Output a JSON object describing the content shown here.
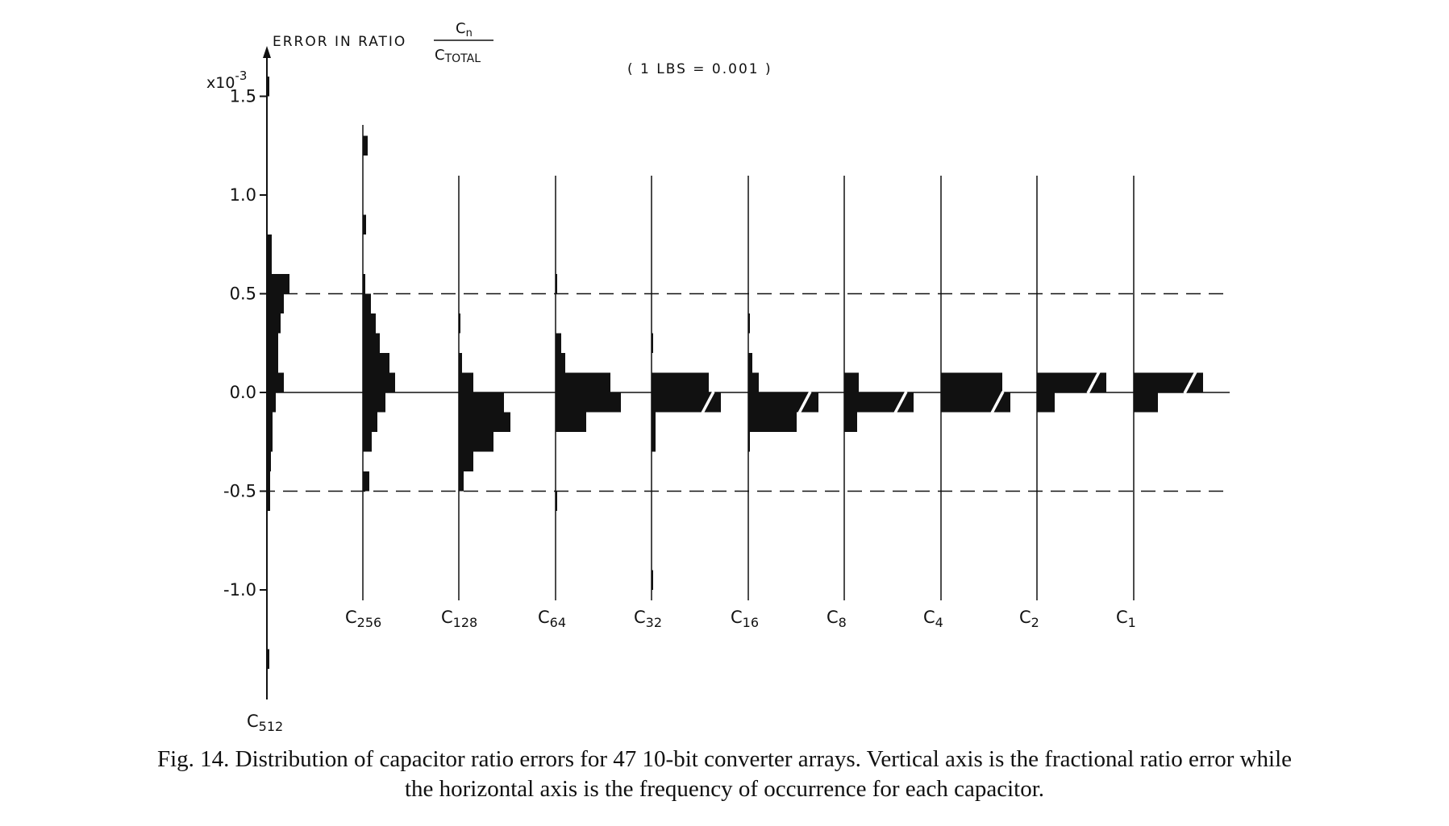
{
  "chart_data": {
    "type": "histogram-columns",
    "title": "ERROR IN RATIO",
    "title_fraction": {
      "numerator": "C",
      "numerator_sub": "n",
      "denominator": "C",
      "denominator_sub": "TOTAL"
    },
    "note": "( 1 LBS = 0.001 )",
    "ylabel_multiplier": "x10",
    "ylabel_exponent": "-3",
    "yticks": [
      {
        "value": 1.5,
        "label": "1.5"
      },
      {
        "value": 1.0,
        "label": "1.0"
      },
      {
        "value": 0.5,
        "label": "0.5"
      },
      {
        "value": 0.0,
        "label": "0.0"
      },
      {
        "value": -0.5,
        "label": "-0.5"
      },
      {
        "value": -1.0,
        "label": "-1.0"
      }
    ],
    "ylim": [
      -1.55,
      1.6
    ],
    "dashed_reference_lines": [
      0.5,
      -0.5
    ],
    "columns": [
      {
        "name": "C",
        "sub": "512",
        "segments": [
          [
            1.5,
            1.6,
            3
          ],
          [
            -0.6,
            -0.4,
            4
          ],
          [
            -0.4,
            -0.3,
            5
          ],
          [
            -0.3,
            -0.1,
            7
          ],
          [
            -0.1,
            0.0,
            11
          ],
          [
            0.0,
            0.1,
            21
          ],
          [
            0.1,
            0.3,
            14
          ],
          [
            0.3,
            0.4,
            17
          ],
          [
            0.4,
            0.5,
            21
          ],
          [
            0.5,
            0.6,
            28
          ],
          [
            0.6,
            0.8,
            6
          ],
          [
            -1.4,
            -1.3,
            3
          ]
        ]
      },
      {
        "name": "C",
        "sub": "256",
        "segments": [
          [
            1.2,
            1.3,
            6
          ],
          [
            0.8,
            0.9,
            4
          ],
          [
            0.5,
            0.6,
            3
          ],
          [
            0.4,
            0.5,
            10
          ],
          [
            0.3,
            0.4,
            16
          ],
          [
            0.2,
            0.3,
            21
          ],
          [
            0.1,
            0.2,
            33
          ],
          [
            0.0,
            0.1,
            40
          ],
          [
            -0.1,
            0.0,
            28
          ],
          [
            -0.2,
            -0.1,
            18
          ],
          [
            -0.3,
            -0.2,
            11
          ],
          [
            -0.5,
            -0.4,
            8
          ]
        ]
      },
      {
        "name": "C",
        "sub": "128",
        "segments": [
          [
            0.3,
            0.4,
            2
          ],
          [
            0.1,
            0.2,
            4
          ],
          [
            0.0,
            0.1,
            18
          ],
          [
            -0.1,
            0.0,
            56
          ],
          [
            -0.2,
            -0.1,
            64
          ],
          [
            -0.3,
            -0.2,
            43
          ],
          [
            -0.4,
            -0.3,
            18
          ],
          [
            -0.5,
            -0.4,
            6
          ]
        ]
      },
      {
        "name": "C",
        "sub": "64",
        "segments": [
          [
            0.5,
            0.6,
            2
          ],
          [
            0.2,
            0.3,
            7
          ],
          [
            0.1,
            0.2,
            12
          ],
          [
            0.0,
            0.1,
            68
          ],
          [
            -0.1,
            0.0,
            81
          ],
          [
            -0.2,
            -0.1,
            38
          ],
          [
            -0.6,
            -0.5,
            2
          ]
        ]
      },
      {
        "name": "C",
        "sub": "32",
        "segments": [
          [
            0.2,
            0.3,
            2
          ],
          [
            0.0,
            0.1,
            71
          ],
          [
            -0.1,
            0.0,
            86
          ],
          [
            -0.3,
            -0.1,
            5
          ],
          [
            -1.0,
            -0.9,
            2
          ]
        ]
      },
      {
        "name": "C",
        "sub": "16",
        "segments": [
          [
            0.3,
            0.4,
            2
          ],
          [
            0.1,
            0.2,
            5
          ],
          [
            0.0,
            0.1,
            13
          ],
          [
            -0.1,
            0.0,
            87
          ],
          [
            -0.2,
            -0.1,
            60
          ],
          [
            -0.3,
            -0.2,
            2
          ]
        ]
      },
      {
        "name": "C",
        "sub": "8",
        "segments": [
          [
            0.0,
            0.1,
            18
          ],
          [
            -0.1,
            0.0,
            86
          ],
          [
            -0.2,
            -0.1,
            16
          ]
        ]
      },
      {
        "name": "C",
        "sub": "4",
        "segments": [
          [
            0.0,
            0.1,
            76
          ],
          [
            -0.1,
            0.0,
            86
          ]
        ]
      },
      {
        "name": "C",
        "sub": "2",
        "segments": [
          [
            0.0,
            0.1,
            86
          ],
          [
            -0.1,
            0.0,
            22
          ]
        ]
      },
      {
        "name": "C",
        "sub": "1",
        "segments": [
          [
            0.0,
            0.1,
            86
          ],
          [
            -0.1,
            0.0,
            30
          ]
        ]
      }
    ]
  },
  "caption": {
    "line1": "Fig. 14.  Distribution of capacitor ratio errors for 47 10-bit converter arrays.  Vertical axis is the fractional ratio error while",
    "line2": "the horizontal axis is the frequency of occurrence for each capacitor."
  }
}
